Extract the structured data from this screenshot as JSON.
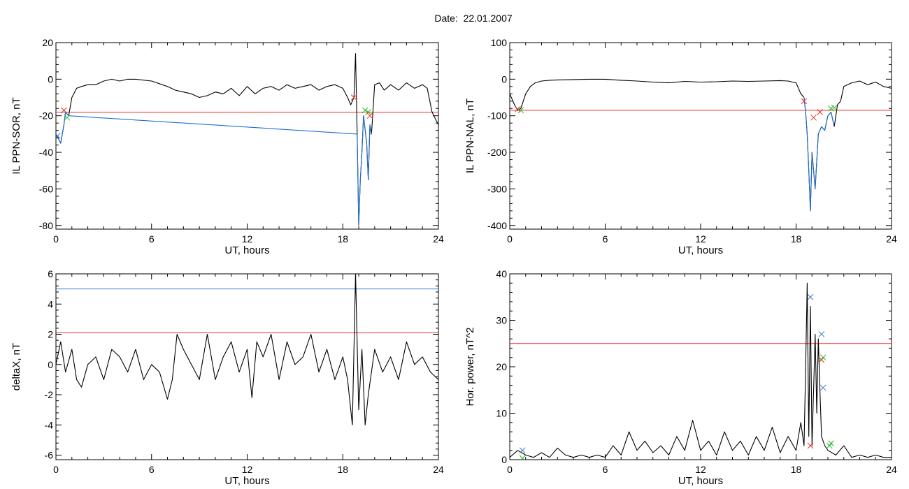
{
  "figure": {
    "title": "Date:  22.01.2007"
  },
  "colors": {
    "trace": "#000000",
    "threshold_red": "#e8312a",
    "threshold_blue": "#3a78c9",
    "dip": "#1f6fd0",
    "marker_red": "#e8312a",
    "marker_green": "#2db82d",
    "marker_blue": "#3a78c9"
  },
  "chart_data": [
    {
      "id": "sor",
      "type": "line",
      "title": "",
      "xlabel": "UT, hours",
      "ylabel": "IL PPN-SOR, nT",
      "xlim": [
        0,
        24
      ],
      "ylim": [
        -82,
        20
      ],
      "xticks": [
        0,
        6,
        12,
        18,
        24
      ],
      "yticks": [
        20,
        0,
        -20,
        -40,
        -60,
        -80
      ],
      "thresholds": [
        {
          "y": -18,
          "color": "red"
        }
      ],
      "series": [
        {
          "x": [
            0,
            0.3,
            0.5,
            0.6,
            0.8,
            1,
            1.3,
            1.6,
            2,
            2.5,
            3,
            3.5,
            4,
            4.5,
            5,
            6,
            7,
            7.5,
            8,
            8.5,
            9,
            9.5,
            10,
            10.5,
            11,
            11.5,
            12,
            12.5,
            13,
            13.5,
            14,
            14.5,
            15,
            15.5,
            16,
            16.5,
            17,
            17.5,
            18,
            18.3,
            18.5,
            18.7,
            18.8,
            18.9,
            19.0,
            19.1,
            19.2,
            19.3,
            19.5,
            19.6,
            19.7,
            19.8,
            20,
            20.3,
            20.6,
            21,
            21.5,
            22,
            22.5,
            23,
            23.3,
            23.6,
            24
          ],
          "y": [
            -30,
            -35,
            -25,
            -18,
            -20,
            -10,
            -5,
            -4,
            -3,
            -3,
            -1,
            0,
            -1,
            0,
            0,
            -1,
            -4,
            -6,
            -7,
            -8,
            -10,
            -9,
            -7,
            -8,
            -5,
            -9,
            -4,
            -8,
            -5,
            -4,
            -6,
            -3,
            -5,
            -4,
            -3,
            -6,
            -4,
            -3,
            -5,
            -10,
            -14,
            -10,
            14,
            -30,
            -80,
            -55,
            -40,
            -20,
            -35,
            -55,
            -25,
            -30,
            -3,
            -2,
            -6,
            -3,
            -6,
            -2,
            -5,
            -3,
            -5,
            -18,
            -25
          ]
        },
        {
          "name": "",
          "x": [
            0,
            0.3,
            0.5,
            0.6,
            0.8,
            18.9,
            19.0,
            19.1,
            19.2,
            19.3,
            19.5,
            19.6,
            19.7,
            19.8
          ],
          "y": [
            -30,
            -35,
            -25,
            -18,
            -20,
            -30,
            -80,
            -55,
            -40,
            -20,
            -35,
            -55,
            -25,
            -30
          ]
        }
      ],
      "markers": [
        {
          "x": 0.1,
          "y": -31,
          "color": "blue"
        },
        {
          "x": 0.5,
          "y": -17,
          "color": "red"
        },
        {
          "x": 0.7,
          "y": -21,
          "color": "green"
        },
        {
          "x": 18.7,
          "y": -10,
          "color": "red"
        },
        {
          "x": 19.4,
          "y": -17,
          "color": "green"
        },
        {
          "x": 19.6,
          "y": -18,
          "color": "green"
        },
        {
          "x": 19.7,
          "y": -20,
          "color": "red"
        }
      ]
    },
    {
      "id": "nal",
      "type": "line",
      "title": "",
      "xlabel": "UT, hours",
      "ylabel": "IL PPN-NAL, nT",
      "xlim": [
        0,
        24
      ],
      "ylim": [
        -410,
        100
      ],
      "xticks": [
        0,
        6,
        12,
        18,
        24
      ],
      "yticks": [
        100,
        0,
        -100,
        -200,
        -300,
        -400
      ],
      "thresholds": [
        {
          "y": -85,
          "color": "red"
        }
      ],
      "series": [
        {
          "x": [
            0,
            0.3,
            0.5,
            0.7,
            1,
            1.3,
            1.6,
            2,
            2.5,
            3,
            4,
            5,
            6,
            7,
            8,
            9,
            10,
            11,
            12,
            13,
            14,
            15,
            16,
            17,
            17.5,
            18,
            18.3,
            18.5,
            18.6,
            18.7,
            18.8,
            18.9,
            19.0,
            19.2,
            19.4,
            19.6,
            19.8,
            20,
            20.2,
            20.4,
            20.6,
            20.8,
            21,
            21.5,
            22,
            22.5,
            23,
            23.5,
            24
          ],
          "y": [
            -40,
            -70,
            -85,
            -80,
            -40,
            -20,
            -10,
            -5,
            -3,
            -2,
            -1,
            0,
            0,
            -3,
            -5,
            -8,
            -10,
            -6,
            -8,
            -7,
            -5,
            -6,
            -5,
            -4,
            -5,
            -10,
            -40,
            -50,
            -90,
            -150,
            -250,
            -360,
            -200,
            -300,
            -150,
            -130,
            -140,
            -100,
            -90,
            -130,
            -70,
            -60,
            -20,
            -10,
            -5,
            -15,
            -8,
            -20,
            -25
          ]
        },
        {
          "name": "",
          "x": [
            18.5,
            18.6,
            18.7,
            18.8,
            18.9,
            19.0,
            19.2,
            19.4,
            19.6,
            19.8,
            20,
            20.2,
            20.4
          ],
          "y": [
            -50,
            -90,
            -150,
            -250,
            -360,
            -200,
            -300,
            -150,
            -130,
            -140,
            -100,
            -90,
            -130
          ]
        }
      ],
      "markers": [
        {
          "x": 0.5,
          "y": -82,
          "color": "red"
        },
        {
          "x": 0.7,
          "y": -85,
          "color": "green"
        },
        {
          "x": 18.5,
          "y": -60,
          "color": "red"
        },
        {
          "x": 19.1,
          "y": -105,
          "color": "red"
        },
        {
          "x": 19.5,
          "y": -90,
          "color": "red"
        },
        {
          "x": 20.2,
          "y": -80,
          "color": "green"
        },
        {
          "x": 20.4,
          "y": -78,
          "color": "green"
        }
      ]
    },
    {
      "id": "deltax",
      "type": "line",
      "title": "",
      "xlabel": "UT, hours",
      "ylabel": "deltaX, nT",
      "xlim": [
        0,
        24
      ],
      "ylim": [
        -6.3,
        6
      ],
      "xticks": [
        0,
        6,
        12,
        18,
        24
      ],
      "yticks": [
        6,
        4,
        2,
        0,
        -2,
        -4,
        -6
      ],
      "thresholds": [
        {
          "y": 5,
          "color": "blue"
        },
        {
          "y": 2.1,
          "color": "red"
        }
      ],
      "series": [
        {
          "x": [
            0,
            0.3,
            0.6,
            1,
            1.3,
            1.6,
            2,
            2.5,
            3,
            3.5,
            4,
            4.5,
            5,
            5.5,
            6,
            6.5,
            7,
            7.3,
            7.6,
            8,
            8.5,
            9,
            9.5,
            10,
            10.5,
            11,
            11.5,
            12,
            12.3,
            12.6,
            13,
            13.5,
            14,
            14.5,
            15,
            15.5,
            16,
            16.5,
            17,
            17.5,
            18,
            18.3,
            18.6,
            18.8,
            19.0,
            19.2,
            19.4,
            19.6,
            20,
            20.5,
            21,
            21.5,
            22,
            22.5,
            23,
            23.5,
            24
          ],
          "y": [
            0,
            1.5,
            -0.5,
            1,
            -1,
            -1.5,
            0,
            0.5,
            -1,
            1,
            0.5,
            -0.5,
            1,
            -1,
            0,
            -0.5,
            -2.3,
            -1,
            2,
            1,
            0,
            -1,
            2,
            -1,
            0.5,
            1.5,
            -0.5,
            1,
            -2.2,
            1.5,
            0.5,
            2,
            -1,
            1.5,
            0,
            0.5,
            2,
            -0.5,
            1,
            -1,
            0.5,
            -1,
            -4,
            6,
            -3,
            1,
            -4,
            -2,
            1,
            -0.5,
            0.5,
            -1,
            1.5,
            0,
            0.5,
            -0.5,
            -1
          ]
        }
      ],
      "markers": []
    },
    {
      "id": "power",
      "type": "line",
      "title": "",
      "xlabel": "UT, hours",
      "ylabel": "Hor. power, nT^2",
      "xlim": [
        0,
        24
      ],
      "ylim": [
        0,
        40
      ],
      "xticks": [
        0,
        6,
        12,
        18,
        24
      ],
      "yticks": [
        40,
        30,
        20,
        10,
        0
      ],
      "thresholds": [
        {
          "y": 25,
          "color": "red"
        }
      ],
      "series": [
        {
          "x": [
            0,
            0.5,
            1,
            1.5,
            2,
            2.5,
            3,
            3.5,
            4,
            4.5,
            5,
            5.5,
            6,
            6.5,
            7,
            7.5,
            8,
            8.5,
            9,
            9.5,
            10,
            10.5,
            11,
            11.5,
            12,
            12.5,
            13,
            13.5,
            14,
            14.5,
            15,
            15.5,
            16,
            16.5,
            17,
            17.5,
            18,
            18.3,
            18.5,
            18.6,
            18.7,
            18.8,
            18.9,
            19.0,
            19.2,
            19.3,
            19.4,
            19.5,
            19.6,
            19.8,
            20,
            20.5,
            21,
            21.5,
            22,
            22.5,
            23,
            23.5,
            24
          ],
          "y": [
            0.5,
            2,
            1,
            0.5,
            1.5,
            0.5,
            2.5,
            1,
            0.5,
            1,
            0.5,
            1,
            0.5,
            3,
            1,
            6,
            2,
            4,
            1.5,
            3,
            1,
            5,
            2,
            8.5,
            2,
            4,
            1,
            6,
            2,
            4,
            1,
            5,
            2,
            7,
            1.5,
            5,
            2,
            8,
            3,
            20,
            38,
            5,
            33,
            3,
            27,
            10,
            26,
            15,
            5,
            3,
            2,
            1,
            3,
            0.5,
            1,
            0.5,
            1,
            0.5,
            0.5
          ]
        }
      ],
      "markers": [
        {
          "x": 0.8,
          "y": 2,
          "color": "blue"
        },
        {
          "x": 0.8,
          "y": 0.3,
          "color": "green"
        },
        {
          "x": 18.9,
          "y": 35,
          "color": "blue"
        },
        {
          "x": 18.9,
          "y": 3,
          "color": "red"
        },
        {
          "x": 19.6,
          "y": 27,
          "color": "blue"
        },
        {
          "x": 19.6,
          "y": 21.5,
          "color": "red"
        },
        {
          "x": 19.7,
          "y": 22,
          "color": "green"
        },
        {
          "x": 19.7,
          "y": 15.5,
          "color": "blue"
        },
        {
          "x": 20.1,
          "y": 3,
          "color": "green"
        },
        {
          "x": 20.2,
          "y": 3.5,
          "color": "green"
        }
      ]
    }
  ]
}
